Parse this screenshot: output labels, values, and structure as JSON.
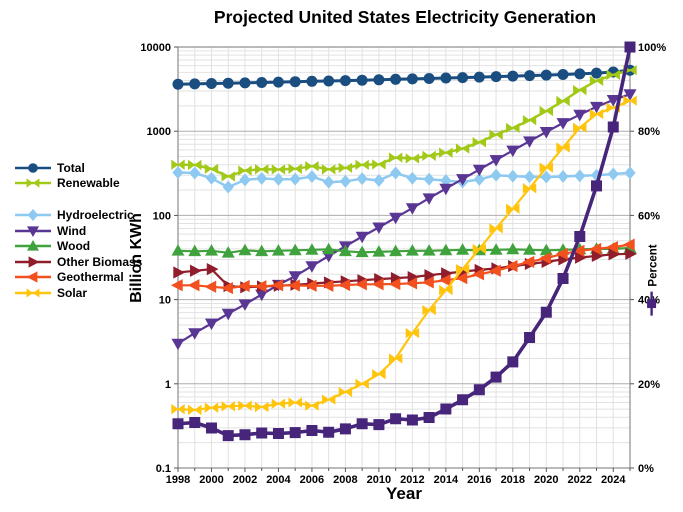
{
  "chart_data": {
    "type": "line",
    "title": "Projected United States Electricity Generation",
    "xlabel": "Year",
    "ylabel": "Billion KWh",
    "x": [
      1998,
      1999,
      2000,
      2001,
      2002,
      2003,
      2004,
      2005,
      2006,
      2007,
      2008,
      2009,
      2010,
      2011,
      2012,
      2013,
      2014,
      2015,
      2016,
      2017,
      2018,
      2019,
      2020,
      2021,
      2022,
      2023,
      2024,
      2025
    ],
    "x_tick_labels": [
      "1998",
      "2000",
      "2002",
      "2004",
      "2006",
      "2008",
      "2010",
      "2012",
      "2014",
      "2016",
      "2018",
      "2020",
      "2022",
      "2024"
    ],
    "y_scale": "log",
    "ylim": [
      0.1,
      10000
    ],
    "y_ticks": [
      "10000",
      "1000",
      "100",
      "10",
      "1",
      "0.1"
    ],
    "y_tick_values": [
      10000,
      1000,
      100,
      10,
      1,
      0.1
    ],
    "y2lim": [
      0,
      100
    ],
    "y2_ticks": [
      "100%",
      "80%",
      "60%",
      "40%",
      "20%",
      "0%"
    ],
    "y2_tick_values": [
      100,
      80,
      60,
      40,
      20,
      0
    ],
    "grid": true,
    "legend_position": "left",
    "style": {
      "background": "#FFFFFF",
      "grid_minor_color": "#E2E2E2",
      "grid_major_color": "#ADADAD",
      "border_color": "#8C8C8C",
      "tick_color": "#555555"
    },
    "series": [
      {
        "name": "Total",
        "axis": "left",
        "color": "#1A4E80",
        "marker": "circle",
        "line_width": 3,
        "values": [
          3620,
          3650,
          3690,
          3720,
          3750,
          3790,
          3830,
          3870,
          3910,
          3950,
          3990,
          4030,
          4080,
          4130,
          4180,
          4230,
          4280,
          4330,
          4390,
          4450,
          4510,
          4570,
          4640,
          4710,
          4790,
          4900,
          5050,
          5300
        ]
      },
      {
        "name": "Renewable",
        "axis": "left",
        "color": "#A3C918",
        "marker": "bowtie",
        "line_width": 2.5,
        "values": [
          400,
          398,
          357,
          290,
          341,
          353,
          351,
          358,
          384,
          352,
          367,
          399,
          403,
          486,
          474,
          510,
          556,
          621,
          739,
          910,
          1092,
          1352,
          1733,
          2284,
          3074,
          3963,
          4677,
          5300
        ]
      },
      {
        "name": "Hydroelectric",
        "axis": "left",
        "color": "#8DC9F0",
        "marker": "diamond",
        "line_width": 2.5,
        "values": [
          323,
          319,
          276,
          217,
          264,
          275,
          268,
          270,
          289,
          248,
          254,
          273,
          260,
          319,
          276,
          269,
          259,
          249,
          268,
          300,
          292,
          288,
          285,
          290,
          295,
          300,
          310,
          320
        ]
      },
      {
        "name": "Wind",
        "axis": "left",
        "color": "#5A3694",
        "marker": "triangle-down",
        "line_width": 2.2,
        "values": [
          3,
          4,
          5.2,
          6.8,
          8.8,
          11.5,
          15,
          19,
          25,
          33,
          43,
          56,
          72,
          94,
          122,
          160,
          208,
          270,
          350,
          455,
          590,
          760,
          980,
          1250,
          1570,
          1950,
          2350,
          2750
        ]
      },
      {
        "name": "Wood",
        "axis": "left",
        "color": "#3FA23C",
        "marker": "triangle-up",
        "line_width": 2.2,
        "values": [
          38,
          37.5,
          38,
          36,
          38.5,
          37.5,
          38,
          38.5,
          39,
          39.5,
          37.5,
          36.5,
          37,
          37.5,
          38,
          38,
          38.5,
          39,
          38.5,
          39,
          39.5,
          39,
          38.5,
          39,
          39.5,
          40,
          40,
          41
        ]
      },
      {
        "name": "Other Biomass",
        "axis": "left",
        "color": "#8F1D2C",
        "marker": "triangle-right",
        "line_width": 2.2,
        "values": [
          21,
          22,
          23,
          14.5,
          14,
          14.3,
          14.6,
          15,
          15.5,
          16,
          16.5,
          17,
          17.5,
          18,
          18.5,
          19.5,
          20.5,
          21.5,
          22.5,
          23.5,
          25,
          26.5,
          28,
          30,
          31.5,
          33,
          34.5,
          35
        ]
      },
      {
        "name": "Geothermal",
        "axis": "left",
        "color": "#F2501E",
        "marker": "triangle-left",
        "line_width": 2.2,
        "values": [
          14.8,
          14.8,
          14.2,
          13.7,
          14.5,
          14.4,
          14.8,
          14.7,
          14.6,
          14.6,
          14.9,
          15.2,
          15.2,
          15.3,
          15.6,
          16,
          17,
          18,
          20,
          22,
          25,
          28,
          31,
          35,
          38,
          40,
          42,
          45
        ]
      },
      {
        "name": "Solar",
        "axis": "left",
        "color": "#FFC40C",
        "marker": "bowtie",
        "line_width": 2.2,
        "values": [
          0.5,
          0.49,
          0.52,
          0.54,
          0.55,
          0.53,
          0.58,
          0.6,
          0.55,
          0.65,
          0.8,
          1,
          1.3,
          2,
          4,
          7.5,
          13,
          23,
          40,
          70,
          120,
          210,
          370,
          640,
          1100,
          1600,
          1900,
          2300
        ]
      },
      {
        "name": "Percent",
        "axis": "right",
        "color": "#46257A",
        "marker": "square",
        "line_width": 3.6,
        "values": [
          10.5,
          10.8,
          9.5,
          7.7,
          7.9,
          8.3,
          8.2,
          8.4,
          8.9,
          8.5,
          9.3,
          10.5,
          10.3,
          11.7,
          11.4,
          12,
          14,
          16.2,
          18.6,
          21.6,
          25.2,
          31,
          37,
          45,
          55,
          67,
          81,
          100
        ]
      }
    ],
    "legend_groups": [
      [
        "Total",
        "Renewable"
      ],
      [
        "Hydroelectric",
        "Wind",
        "Wood",
        "Other Biomass",
        "Geothermal",
        "Solar"
      ]
    ]
  }
}
